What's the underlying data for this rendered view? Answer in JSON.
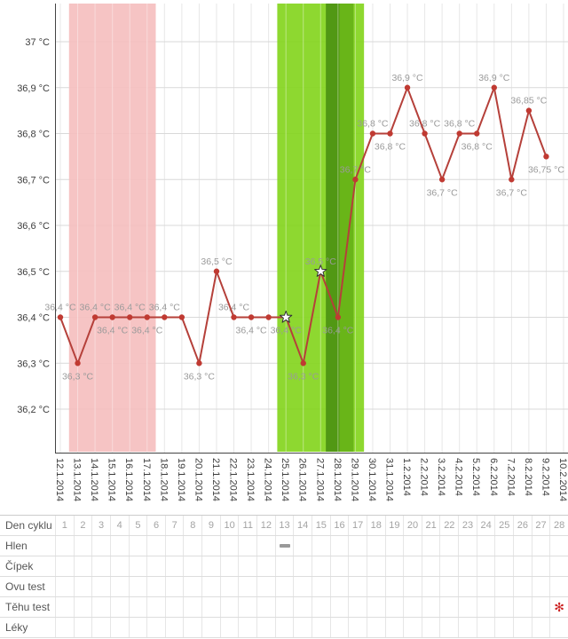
{
  "chart_data": {
    "type": "line",
    "title": "",
    "ylabel_unit": "°C",
    "ylim": [
      36.1,
      37.1
    ],
    "grid": true,
    "legend": "none",
    "y_ticks": [
      {
        "value": 37.0,
        "label": "37 °C"
      },
      {
        "value": 36.9,
        "label": "36,9 °C"
      },
      {
        "value": 36.8,
        "label": "36,8 °C"
      },
      {
        "value": 36.7,
        "label": "36,7 °C"
      },
      {
        "value": 36.6,
        "label": "36,6 °C"
      },
      {
        "value": 36.5,
        "label": "36,5 °C"
      },
      {
        "value": 36.4,
        "label": "36,4 °C"
      },
      {
        "value": 36.3,
        "label": "36,3 °C"
      },
      {
        "value": 36.2,
        "label": "36,2 °C"
      }
    ],
    "x": [
      "12.1.2014",
      "13.1.2014",
      "14.1.2014",
      "15.1.2014",
      "16.1.2014",
      "17.1.2014",
      "18.1.2014",
      "19.1.2014",
      "20.1.2014",
      "21.1.2014",
      "22.1.2014",
      "23.1.2014",
      "24.1.2014",
      "25.1.2014",
      "26.1.2014",
      "27.1.2014",
      "28.1.2014",
      "29.1.2014",
      "30.1.2014",
      "31.1.2014",
      "1.2.2014",
      "2.2.2014",
      "3.2.2014",
      "4.2.2014",
      "5.2.2014",
      "6.2.2014",
      "7.2.2014",
      "8.2.2014",
      "9.2.2014",
      "10.2.2014"
    ],
    "series": [
      {
        "name": "basal-temperature",
        "values": [
          36.4,
          36.3,
          36.4,
          36.4,
          36.4,
          36.4,
          36.4,
          36.4,
          36.3,
          36.5,
          36.4,
          36.4,
          36.4,
          36.4,
          36.3,
          36.5,
          36.4,
          36.7,
          36.8,
          36.8,
          36.9,
          36.8,
          36.7,
          36.8,
          36.8,
          36.9,
          36.7,
          36.85,
          36.75,
          null
        ],
        "point_labels": [
          "36,4 °C",
          "36,3 °C",
          "36,4 °C",
          "36,4 °C",
          "36,4 °C",
          "36,4 °C",
          "36,4 °C",
          null,
          "36,3 °C",
          "36,5 °C",
          "36,4 °C",
          "36,4 °C",
          null,
          "36,4 °C",
          "36,3 °C",
          "36,5 °C",
          "36,4 °C",
          "36,7 °C",
          "36,8 °C",
          "36,8 °C",
          "36,9 °C",
          "36,8 °C",
          "36,7 °C",
          "36,8 °C",
          "36,8 °C",
          "36,9 °C",
          "36,7 °C",
          "36,85 °C",
          "36,75 °C",
          null
        ],
        "label_pos": [
          "above",
          "below",
          "above",
          "below",
          "above",
          "below",
          "above",
          null,
          "below",
          "above",
          "above",
          "below",
          null,
          "below",
          "below",
          "above",
          "below",
          "above",
          "above",
          "below",
          "above",
          "above",
          "below",
          "above",
          "below",
          "above",
          "below",
          "above",
          "below",
          null
        ],
        "star_marker_indices": [
          13,
          15
        ]
      }
    ],
    "bands": [
      {
        "name": "menstruation",
        "from": 0.5,
        "to": 5.5,
        "color": "#f5bfbf"
      },
      {
        "name": "fertile-window",
        "from": 12.5,
        "to": 17.5,
        "color": "#84d51e"
      },
      {
        "name": "ovulation-dark",
        "from": 15.3,
        "to": 16.1,
        "color": "#4c9212"
      },
      {
        "name": "ovulation-medium",
        "from": 16.1,
        "to": 16.9,
        "color": "#66b217"
      }
    ],
    "colors": {
      "line": "#b5403a",
      "point": "#c03a32",
      "point_label": "#9a9a9a",
      "axis": "#444444",
      "grid_h": "#d9d9d9",
      "grid_v": "#e7e7e7",
      "tick_label": "#3d3d3d",
      "star_fill": "#ffffff",
      "star_stroke": "#333333"
    }
  },
  "table": {
    "rows": [
      {
        "label": "Den cyklu",
        "type": "day-numbers"
      },
      {
        "label": "Hlen",
        "marks": {
          "13": "dash"
        }
      },
      {
        "label": "Čípek"
      },
      {
        "label": "Ovu test"
      },
      {
        "label": "Těhu test",
        "marks": {
          "28": "flower"
        }
      },
      {
        "label": "Léky"
      }
    ],
    "day_numbers": [
      1,
      2,
      3,
      4,
      5,
      6,
      7,
      8,
      9,
      10,
      11,
      12,
      13,
      14,
      15,
      16,
      17,
      18,
      19,
      20,
      21,
      22,
      23,
      24,
      25,
      26,
      27,
      28
    ]
  },
  "icons": {
    "flower": "✻"
  },
  "colors": {
    "flower_mark": "#cc2222",
    "dash_mark": "#999999"
  }
}
